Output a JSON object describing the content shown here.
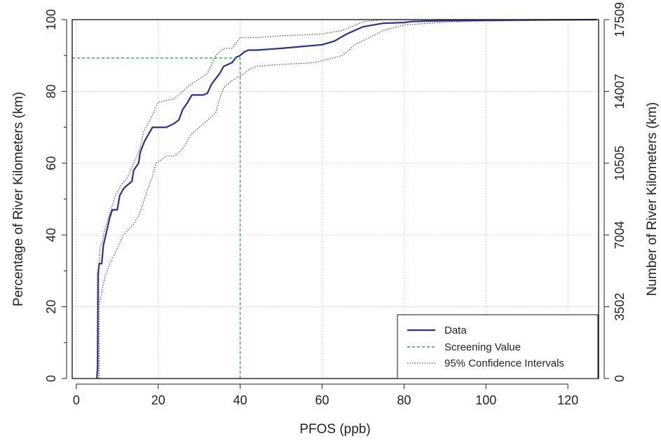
{
  "chart_data": {
    "type": "line",
    "title": "",
    "xlabel": "PFOS (ppb)",
    "ylabel": "Percentage of River Kilometers (km)",
    "ylabel_right": "Number of River Kilometers (km)",
    "xlim": [
      -1,
      127.5
    ],
    "ylim": [
      0,
      100
    ],
    "x_ticks": [
      0,
      20,
      40,
      60,
      80,
      100,
      120
    ],
    "y_ticks": [
      0,
      20,
      40,
      60,
      80,
      100
    ],
    "y_ticks_right": [
      0,
      20,
      40,
      60,
      80,
      100
    ],
    "y_tick_labels_right": [
      "0",
      "3502",
      "7004",
      "10505",
      "14007",
      "17509"
    ],
    "grid": true,
    "legend_position": "bottom-right",
    "series": [
      {
        "name": "Data",
        "color": "#2a2f9a",
        "style": "solid",
        "points": [
          [
            5,
            0
          ],
          [
            5.2,
            3
          ],
          [
            5.3,
            29
          ],
          [
            5.6,
            32
          ],
          [
            6.2,
            32
          ],
          [
            6.6,
            37
          ],
          [
            7.4,
            41
          ],
          [
            8.2,
            45
          ],
          [
            8.8,
            47
          ],
          [
            10,
            47
          ],
          [
            10.6,
            51
          ],
          [
            11.6,
            53
          ],
          [
            12.6,
            54
          ],
          [
            13.6,
            55
          ],
          [
            14,
            58
          ],
          [
            15.2,
            60
          ],
          [
            15.6,
            63
          ],
          [
            16.6,
            66
          ],
          [
            17.6,
            68
          ],
          [
            18.6,
            70
          ],
          [
            20,
            70
          ],
          [
            22,
            70
          ],
          [
            23.8,
            71
          ],
          [
            25,
            72
          ],
          [
            26,
            75
          ],
          [
            27.2,
            77
          ],
          [
            28.2,
            79
          ],
          [
            31,
            79
          ],
          [
            32,
            79.5
          ],
          [
            33,
            82
          ],
          [
            35,
            85
          ],
          [
            36,
            87
          ],
          [
            38,
            88
          ],
          [
            39,
            89.5
          ],
          [
            40,
            90
          ],
          [
            41,
            91
          ],
          [
            42,
            91.5
          ],
          [
            44,
            91.5
          ],
          [
            50,
            92
          ],
          [
            55,
            92.5
          ],
          [
            60,
            93
          ],
          [
            63,
            94
          ],
          [
            66,
            96
          ],
          [
            70,
            98
          ],
          [
            75,
            99
          ],
          [
            80,
            99.2
          ],
          [
            82,
            99.5
          ],
          [
            90,
            99.7
          ],
          [
            100,
            99.8
          ],
          [
            110,
            99.9
          ],
          [
            127,
            100
          ]
        ]
      },
      {
        "name": "Screening Value",
        "color": "#2ea84a",
        "style": "dashed",
        "points": [
          [
            -1,
            89.3
          ],
          [
            40,
            89.3
          ],
          [
            40,
            0
          ]
        ]
      },
      {
        "name": "95% Confidence Intervals",
        "color": "#555555",
        "style": "dotted",
        "points": [
          [
            5.5,
            0
          ],
          [
            5.5,
            30
          ],
          [
            5.7,
            36
          ],
          [
            6.3,
            38
          ],
          [
            7,
            42
          ],
          [
            8.5,
            47
          ],
          [
            9.5,
            51
          ],
          [
            11,
            54
          ],
          [
            12.5,
            56
          ],
          [
            14,
            60
          ],
          [
            15.5,
            64
          ],
          [
            16.5,
            69
          ],
          [
            18,
            72
          ],
          [
            20,
            77
          ],
          [
            24,
            78
          ],
          [
            26,
            80
          ],
          [
            28,
            82
          ],
          [
            32,
            85
          ],
          [
            34,
            90
          ],
          [
            36,
            92
          ],
          [
            38,
            92
          ],
          [
            40,
            95
          ],
          [
            44,
            95
          ],
          [
            50,
            95.5
          ],
          [
            60,
            96
          ],
          [
            65,
            97
          ],
          [
            70,
            99.4
          ],
          [
            75,
            100
          ],
          [
            80,
            100
          ],
          [
            127,
            100
          ]
        ]
      },
      {
        "name": "95% Confidence Intervals (lower)",
        "color": "#555555",
        "style": "dotted",
        "points": [
          [
            5.6,
            0
          ],
          [
            5.6,
            21
          ],
          [
            6.1,
            23
          ],
          [
            6.5,
            26
          ],
          [
            7.2,
            29
          ],
          [
            8.2,
            32
          ],
          [
            9.5,
            35
          ],
          [
            11.5,
            40
          ],
          [
            14,
            43
          ],
          [
            15.5,
            46
          ],
          [
            17.5,
            53
          ],
          [
            18.5,
            56
          ],
          [
            19.5,
            60
          ],
          [
            22,
            62
          ],
          [
            24,
            62
          ],
          [
            26,
            64
          ],
          [
            28,
            68
          ],
          [
            30,
            70
          ],
          [
            32,
            72
          ],
          [
            34,
            74
          ],
          [
            35,
            78
          ],
          [
            36,
            81
          ],
          [
            38,
            83
          ],
          [
            41,
            85
          ],
          [
            42,
            86
          ],
          [
            44,
            87
          ],
          [
            50,
            87.5
          ],
          [
            58,
            88
          ],
          [
            65,
            90
          ],
          [
            68,
            93
          ],
          [
            75,
            97
          ],
          [
            80,
            98.5
          ],
          [
            90,
            99.3
          ],
          [
            100,
            99.6
          ],
          [
            127,
            99.9
          ]
        ]
      }
    ]
  },
  "legend": {
    "items": [
      {
        "label": "Data",
        "color": "#2a2f9a",
        "style": "solid"
      },
      {
        "label": "Screening Value",
        "color": "#2ea84a",
        "style": "dashed"
      },
      {
        "label": "95% Confidence Intervals",
        "color": "#555555",
        "style": "dotted"
      }
    ]
  }
}
